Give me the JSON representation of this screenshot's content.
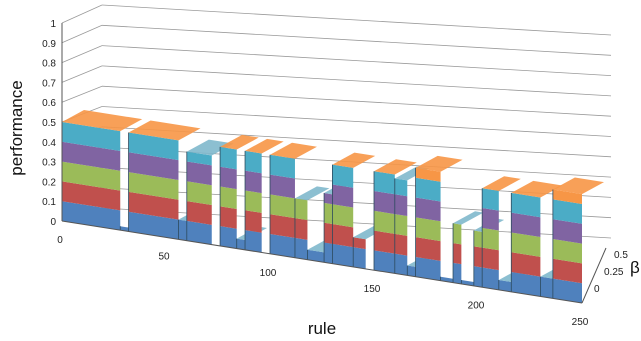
{
  "chart_data": {
    "type": "surface",
    "xlabel": "rule",
    "ylabel": "performance",
    "zlabel": "β",
    "xlim": [
      0,
      250
    ],
    "zlim": [
      0,
      1
    ],
    "x_ticks": [
      "0",
      "50",
      "100",
      "150",
      "200",
      "250"
    ],
    "z_ticks": [
      "0",
      "0.1",
      "0.2",
      "0.3",
      "0.4",
      "0.5",
      "0.6",
      "0.7",
      "0.8",
      "0.9",
      "1"
    ],
    "beta_ticks": [
      "0",
      "0.25",
      "0.5"
    ],
    "color_bands": [
      {
        "range": [
          0,
          0.1
        ],
        "color": "#4f81bd"
      },
      {
        "range": [
          0.1,
          0.2
        ],
        "color": "#c0504d"
      },
      {
        "range": [
          0.2,
          0.3
        ],
        "color": "#9bbb59"
      },
      {
        "range": [
          0.3,
          0.4
        ],
        "color": "#8064a2"
      },
      {
        "range": [
          0.4,
          0.5
        ],
        "color": "#4bacc6"
      },
      {
        "range": [
          0.5,
          0.6
        ],
        "color": "#f79646"
      }
    ],
    "segments": [
      {
        "rule_start": 0,
        "rule_end": 28,
        "performance": 0.5
      },
      {
        "rule_start": 28,
        "rule_end": 32,
        "performance": 0.02
      },
      {
        "rule_start": 32,
        "rule_end": 56,
        "performance": 0.5
      },
      {
        "rule_start": 56,
        "rule_end": 60,
        "performance": 0.1
      },
      {
        "rule_start": 60,
        "rule_end": 72,
        "performance": 0.45
      },
      {
        "rule_start": 72,
        "rule_end": 76,
        "performance": 0.0
      },
      {
        "rule_start": 76,
        "rule_end": 84,
        "performance": 0.5
      },
      {
        "rule_start": 84,
        "rule_end": 88,
        "performance": 0.05
      },
      {
        "rule_start": 88,
        "rule_end": 96,
        "performance": 0.5
      },
      {
        "rule_start": 96,
        "rule_end": 100,
        "performance": 0.0
      },
      {
        "rule_start": 100,
        "rule_end": 112,
        "performance": 0.5
      },
      {
        "rule_start": 112,
        "rule_end": 118,
        "performance": 0.3
      },
      {
        "rule_start": 118,
        "rule_end": 126,
        "performance": 0.05
      },
      {
        "rule_start": 126,
        "rule_end": 130,
        "performance": 0.35
      },
      {
        "rule_start": 130,
        "rule_end": 140,
        "performance": 0.5
      },
      {
        "rule_start": 140,
        "rule_end": 146,
        "performance": 0.15
      },
      {
        "rule_start": 146,
        "rule_end": 150,
        "performance": 0.0
      },
      {
        "rule_start": 150,
        "rule_end": 160,
        "performance": 0.5
      },
      {
        "rule_start": 160,
        "rule_end": 166,
        "performance": 0.48
      },
      {
        "rule_start": 166,
        "rule_end": 170,
        "performance": 0.05
      },
      {
        "rule_start": 170,
        "rule_end": 182,
        "performance": 0.55
      },
      {
        "rule_start": 182,
        "rule_end": 188,
        "performance": 0.02
      },
      {
        "rule_start": 188,
        "rule_end": 192,
        "performance": 0.3
      },
      {
        "rule_start": 192,
        "rule_end": 198,
        "performance": 0.02
      },
      {
        "rule_start": 198,
        "rule_end": 202,
        "performance": 0.28
      },
      {
        "rule_start": 202,
        "rule_end": 210,
        "performance": 0.5
      },
      {
        "rule_start": 210,
        "rule_end": 216,
        "performance": 0.05
      },
      {
        "rule_start": 216,
        "rule_end": 230,
        "performance": 0.5
      },
      {
        "rule_start": 230,
        "rule_end": 236,
        "performance": 0.1
      },
      {
        "rule_start": 236,
        "rule_end": 250,
        "performance": 0.55
      }
    ]
  }
}
